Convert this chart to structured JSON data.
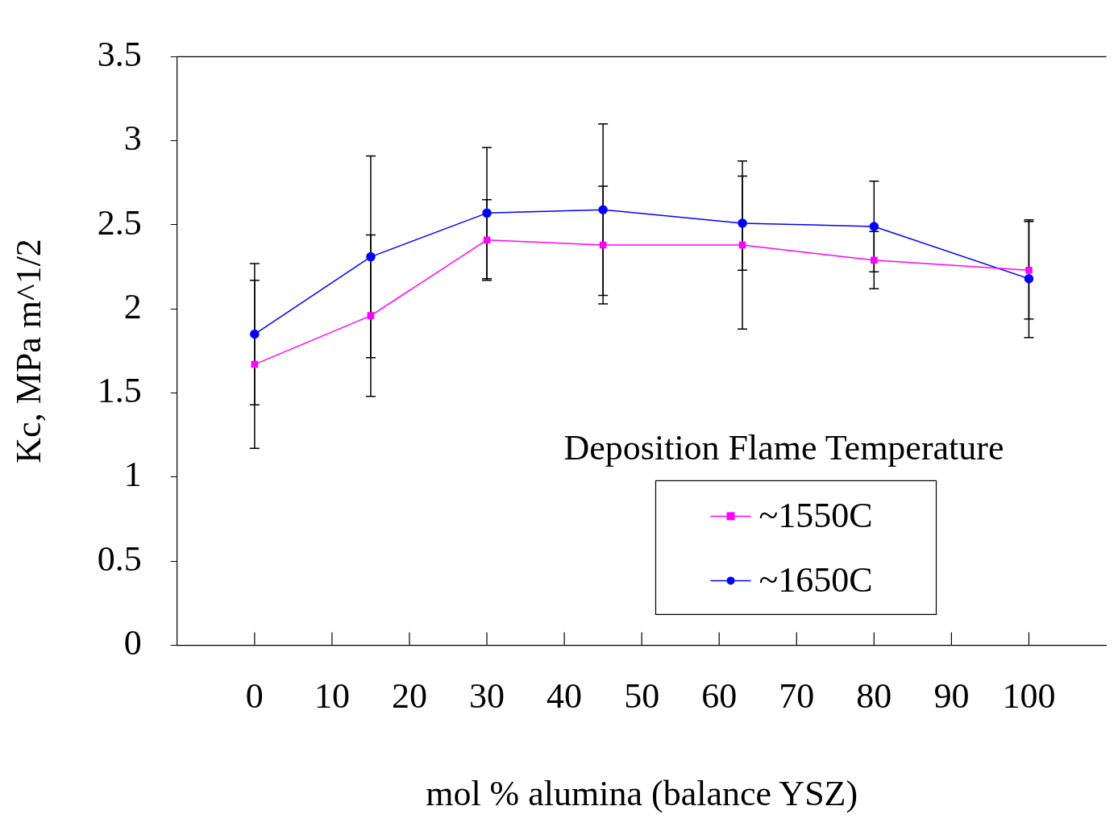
{
  "chart_data": {
    "type": "line",
    "xlabel": "mol % alumina (balance YSZ)",
    "ylabel": "Kc, MPa m^1/2",
    "legend_title": "Deposition Flame Temperature",
    "legend": "bottom right",
    "grid": false,
    "x": [
      0,
      15,
      30,
      45,
      63,
      80,
      100
    ],
    "xlim": [
      -10,
      110
    ],
    "xticks": [
      0,
      10,
      20,
      30,
      40,
      50,
      60,
      70,
      80,
      90,
      100
    ],
    "ylim": [
      0,
      3.5
    ],
    "yticks": [
      0,
      0.5,
      1,
      1.5,
      2,
      2.5,
      3,
      3.5
    ],
    "series": [
      {
        "name": "~1550C",
        "color": "#ff00ff",
        "marker": "square",
        "values": [
          1.67,
          1.96,
          2.41,
          2.38,
          2.38,
          2.29,
          2.23
        ],
        "errors": [
          0.5,
          0.48,
          0.24,
          0.35,
          0.5,
          0.17,
          0.29
        ]
      },
      {
        "name": "~1650C",
        "color": "#0000ff",
        "marker": "circle",
        "values": [
          1.85,
          2.31,
          2.57,
          2.59,
          2.51,
          2.49,
          2.18
        ],
        "errors": [
          0.42,
          0.6,
          0.39,
          0.51,
          0.28,
          0.27,
          0.35
        ]
      }
    ]
  }
}
